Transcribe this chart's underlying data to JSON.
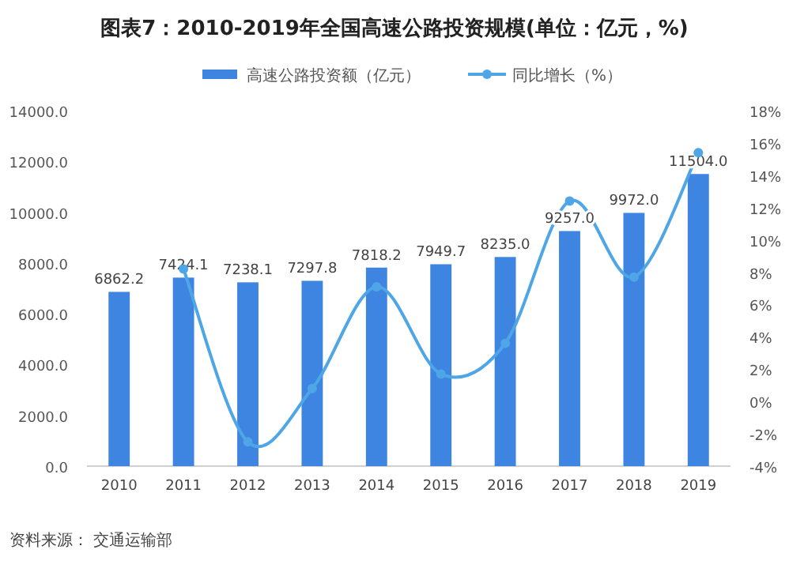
{
  "chart_data": {
    "type": "bar",
    "title": "图表7：2010-2019年全国高速公路投资规模(单位：亿元，%)",
    "categories": [
      "2010",
      "2011",
      "2012",
      "2013",
      "2014",
      "2015",
      "2016",
      "2017",
      "2018",
      "2019"
    ],
    "series": [
      {
        "name": "高速公路投资额（亿元）",
        "color": "#3d85e0",
        "values": [
          6862.2,
          7424.1,
          7238.1,
          7297.8,
          7818.2,
          7949.7,
          8235.0,
          9257.0,
          9972.0,
          11504.0
        ],
        "value_labels": [
          "6862.2",
          "7424.1",
          "7238.1",
          "7297.8",
          "7818.2",
          "7949.7",
          "8235.0",
          "9257.0",
          "9972.0",
          "11504.0"
        ]
      },
      {
        "name": "同比增长（%）",
        "type": "line",
        "axis": "y2",
        "marker": "circle",
        "color": "#4ea6e6",
        "values": [
          null,
          8.2,
          -2.5,
          0.8,
          7.1,
          1.7,
          3.6,
          12.4,
          7.7,
          15.4
        ]
      }
    ],
    "ylim": [
      0,
      14000
    ],
    "yticks": [
      {
        "value": 0,
        "label": "0.0"
      },
      {
        "value": 2000,
        "label": "2000.0"
      },
      {
        "value": 4000,
        "label": "4000.0"
      },
      {
        "value": 6000,
        "label": "6000.0"
      },
      {
        "value": 8000,
        "label": "8000.0"
      },
      {
        "value": 10000,
        "label": "10000.0"
      },
      {
        "value": 12000,
        "label": "12000.0"
      },
      {
        "value": 14000,
        "label": "14000.0"
      }
    ],
    "y2lim": [
      -4,
      18
    ],
    "y2ticks": [
      {
        "value": -4,
        "label": "-4%"
      },
      {
        "value": -2,
        "label": "-2%"
      },
      {
        "value": 0,
        "label": "0%"
      },
      {
        "value": 2,
        "label": "2%"
      },
      {
        "value": 4,
        "label": "4%"
      },
      {
        "value": 6,
        "label": "6%"
      },
      {
        "value": 8,
        "label": "8%"
      },
      {
        "value": 10,
        "label": "10%"
      },
      {
        "value": 12,
        "label": "12%"
      },
      {
        "value": 14,
        "label": "14%"
      },
      {
        "value": 16,
        "label": "16%"
      },
      {
        "value": 18,
        "label": "18%"
      }
    ],
    "legend": "top",
    "annotations": [
      "资料来源： 交通运输部"
    ]
  }
}
